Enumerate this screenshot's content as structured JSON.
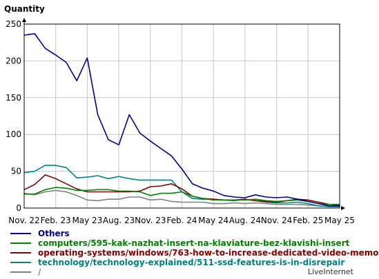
{
  "chart_data": {
    "type": "line",
    "ylabel": "Quantity",
    "xlabel": "",
    "ylim": [
      0,
      250
    ],
    "yticks": [
      0,
      50,
      100,
      150,
      200,
      250
    ],
    "x_tick_labels": [
      "Nov. 22",
      "Feb. 23",
      "May 23",
      "Aug. 23",
      "Nov. 23",
      "Feb. 24",
      "May 24",
      "Aug. 24",
      "Nov. 24",
      "Feb. 25",
      "May 25"
    ],
    "grid": true,
    "legend_position": "bottom",
    "series": [
      {
        "name": "Others",
        "color": "#000080",
        "values": [
          235,
          237,
          217,
          208,
          198,
          173,
          204,
          127,
          93,
          86,
          127,
          102,
          91,
          81,
          71,
          53,
          33,
          27,
          23,
          17,
          15,
          14,
          18,
          15,
          14,
          15,
          12,
          9,
          6,
          3,
          3
        ]
      },
      {
        "name": "computers/595-kak-nazhat-insert-na-klaviature-bez-klavishi-insert",
        "color": "#008000",
        "values": [
          19,
          19,
          25,
          28,
          27,
          24,
          24,
          25,
          25,
          23,
          23,
          22,
          17,
          20,
          20,
          22,
          16,
          13,
          11,
          11,
          11,
          11,
          12,
          10,
          9,
          10,
          11,
          9,
          6,
          5,
          5
        ]
      },
      {
        "name": "operating-systems/windows/763-how-to-increase-dedicated-video-memo",
        "color": "#800000",
        "values": [
          25,
          32,
          45,
          40,
          33,
          26,
          22,
          22,
          22,
          22,
          22,
          23,
          29,
          30,
          33,
          26,
          16,
          13,
          12,
          11,
          11,
          12,
          10,
          9,
          8,
          10,
          12,
          11,
          8,
          5,
          4
        ]
      },
      {
        "name": "technology/technology-explained/511-ssd-features-is-in-disrepair",
        "color": "#008080",
        "values": [
          48,
          50,
          58,
          58,
          55,
          41,
          42,
          44,
          40,
          43,
          40,
          38,
          38,
          38,
          38,
          22,
          13,
          12,
          12,
          11,
          10,
          12,
          10,
          8,
          7,
          7,
          8,
          6,
          3,
          2,
          2
        ]
      },
      {
        "name": "/",
        "color": "#808080",
        "values": [
          20,
          18,
          22,
          24,
          22,
          17,
          11,
          10,
          12,
          12,
          15,
          15,
          11,
          12,
          9,
          8,
          8,
          8,
          6,
          6,
          7,
          6,
          7,
          6,
          5,
          5,
          5,
          4,
          3,
          2,
          2
        ]
      }
    ]
  },
  "credit": "LiveInternet"
}
